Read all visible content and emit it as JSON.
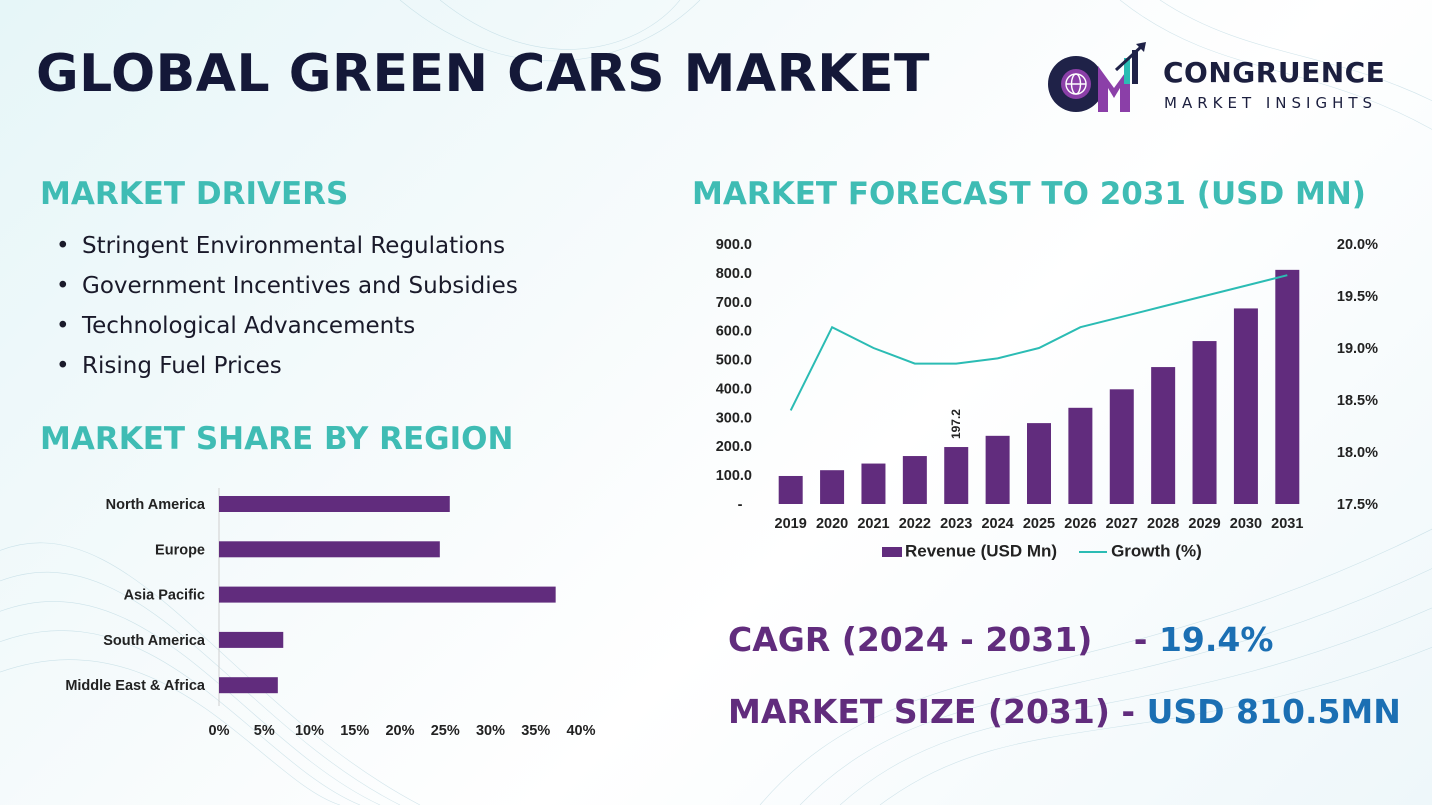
{
  "header": {
    "title": "GLOBAL GREEN CARS MARKET",
    "logo": {
      "initials": "CM",
      "name": "CONGRUENCE",
      "tagline": "MARKET INSIGHTS"
    }
  },
  "drivers": {
    "heading": "MARKET DRIVERS",
    "items": [
      "Stringent Environmental Regulations",
      "Government Incentives and Subsidies",
      "Technological Advancements",
      "Rising Fuel Prices"
    ]
  },
  "region": {
    "heading": "MARKET SHARE BY REGION"
  },
  "forecast": {
    "heading": "MARKET FORECAST TO 2031 (USD MN)"
  },
  "kpis": {
    "cagr_label": "CAGR (2024 - 2031)",
    "cagr_sep": " - ",
    "cagr_value": "19.4%",
    "size_label": "MARKET SIZE (2031)",
    "size_sep": " - ",
    "size_value": "USD 810.5MN"
  },
  "colors": {
    "bar": "#612c7d",
    "line": "#2bbcb4",
    "heading": "#3fbcb4",
    "value": "#1b6fb3"
  },
  "chart_data": [
    {
      "type": "bar",
      "orientation": "horizontal",
      "categories": [
        "North America",
        "Europe",
        "Asia Pacific",
        "South America",
        "Middle East & Africa"
      ],
      "values": [
        25.5,
        24.4,
        37.2,
        7.1,
        6.5
      ],
      "x_ticks": [
        "0%",
        "5%",
        "10%",
        "15%",
        "20%",
        "25%",
        "30%",
        "35%",
        "40%"
      ],
      "xlim": [
        0,
        40
      ],
      "unit": "%"
    },
    {
      "type": "bar+line",
      "x": [
        "2019",
        "2020",
        "2021",
        "2022",
        "2023",
        "2024",
        "2025",
        "2026",
        "2027",
        "2028",
        "2029",
        "2030",
        "2031"
      ],
      "series": [
        {
          "name": "Revenue (USD Mn)",
          "type": "bar",
          "axis": "left",
          "values": [
            97,
            117,
            140,
            166,
            197.2,
            236,
            280,
            333,
            397,
            474,
            564,
            677,
            810.5
          ]
        },
        {
          "name": "Growth (%)",
          "type": "line",
          "axis": "right",
          "values": [
            18.4,
            19.2,
            19.0,
            18.85,
            18.85,
            18.9,
            19.0,
            19.2,
            19.3,
            19.4,
            19.5,
            19.6,
            19.7
          ]
        }
      ],
      "data_labels": [
        {
          "index": 4,
          "text": "197.2"
        }
      ],
      "y_left_ticks": [
        "-",
        "100.0",
        "200.0",
        "300.0",
        "400.0",
        "500.0",
        "600.0",
        "700.0",
        "800.0",
        "900.0"
      ],
      "ylim_left": [
        0,
        900
      ],
      "y_right_ticks": [
        "17.5%",
        "18.0%",
        "18.5%",
        "19.0%",
        "19.5%",
        "20.0%"
      ],
      "ylim_right": [
        17.5,
        20.0
      ],
      "legend": "bottom"
    }
  ]
}
